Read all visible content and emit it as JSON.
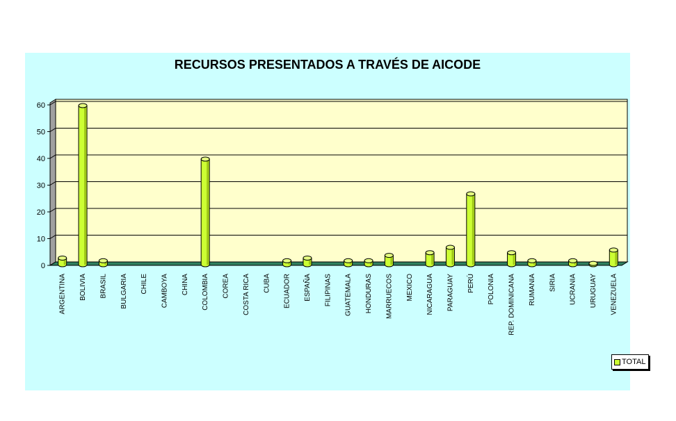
{
  "chart_data": {
    "type": "bar",
    "title": "RECURSOS  PRESENTADOS A TRAVÉS DE AICODE",
    "categories": [
      "ARGENTINA",
      "BOLIVIA",
      "BRASIL",
      "BULGARIA",
      "CHILE",
      "CAMBOYA",
      "CHINA",
      "COLOMBIA",
      "COREA",
      "COSTA RICA",
      "CUBA",
      "ECUADOR",
      "ESPAÑA",
      "FILIPINAS",
      "GUATEMALA",
      "HONDURAS",
      "MARRUECOS",
      "MEXICO",
      "NICARAGUA",
      "PARAGUAY",
      "PERÚ",
      "POLONIA",
      "REP. DOMINICANA",
      "RUMANIA",
      "SIRIA",
      "UCRANIA",
      "URUGUAY",
      "VENEZUELA"
    ],
    "series": [
      {
        "name": "TOTAL",
        "values": [
          3,
          60,
          2,
          0,
          0,
          0,
          0,
          40,
          0,
          0,
          0,
          2,
          3,
          0,
          2,
          2,
          4,
          0,
          5,
          7,
          27,
          0,
          5,
          2,
          0,
          2,
          1,
          6
        ]
      }
    ],
    "ylim": [
      0,
      60
    ],
    "yticks": [
      0,
      10,
      20,
      30,
      40,
      50,
      60
    ],
    "grid": true,
    "legend": "right",
    "colors": {
      "bar": "#ccff33",
      "bar_dark": "#7a9900",
      "plot_bg": "#ffffcc",
      "plot_side": "#a0a0a0",
      "floor": "#2f7f5f",
      "chart_bg": "#ccffff"
    }
  }
}
